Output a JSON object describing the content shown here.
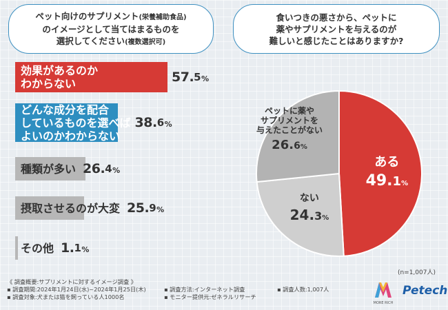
{
  "left_question": {
    "line1": "ペット向けのサプリメント",
    "line1_small": "(栄養補助食品)",
    "line2": "のイメージとして当てはまるものを",
    "line3": "選択してください",
    "line3_small": "(複数選択可)"
  },
  "right_question": {
    "line1": "食いつきの悪さから、ペットに",
    "line2": "薬やサプリメントを与えるのが",
    "line3": "難しいと感じたことはありますか?"
  },
  "sample_note": "(n=1,007人)",
  "footer": {
    "title": "《 調査概要:サプリメントに対するイメージ調査 》",
    "period": "▪ 調査期間:2024年1月24日(水)~2024年1月25日(木)",
    "target": "▪ 調査対象:犬または猫を飼っている人1000名",
    "method": "▪ 調査方法:インターネット調査",
    "provider": "▪ モニター提供元:ゼネラルリサーチ",
    "count": "▪ 調査人数:1,007人"
  },
  "logos": {
    "more_rich": "MORE RICH",
    "petech": "Petech"
  },
  "colors": {
    "red": "#d63a35",
    "blue": "#2e8ec0",
    "gray": "#b7b7b7",
    "border": "#3c8fc0"
  },
  "chart_data": [
    {
      "type": "bar",
      "orientation": "horizontal",
      "unit": "%",
      "categories": [
        "効果があるのかわからない",
        "どんな成分を配合しているものを選べばよいのかわからない",
        "種類が多い",
        "摂取させるのが大変",
        "その他"
      ],
      "labels": [
        {
          "lines": [
            "効果があるのか",
            "わからない"
          ],
          "value_int": "57.",
          "value_dec": "5",
          "pct": "%"
        },
        {
          "lines": [
            "どんな成分を配合",
            "しているものを選べば",
            "よいのかわからない"
          ],
          "value_int": "38.",
          "value_dec": "6",
          "pct": "%"
        },
        {
          "lines": [
            "種類が多い"
          ],
          "value_int": "26.",
          "value_dec": "4",
          "pct": "%"
        },
        {
          "lines": [
            "摂取させるのが大変"
          ],
          "value_int": "25.",
          "value_dec": "9",
          "pct": "%"
        },
        {
          "lines": [
            "その他"
          ],
          "value_int": "1.",
          "value_dec": "1",
          "pct": "%"
        }
      ],
      "values": [
        57.5,
        38.6,
        26.4,
        25.9,
        1.1
      ],
      "bar_colors": [
        "#d63a35",
        "#2e8ec0",
        "#b7b7b7",
        "#b7b7b7",
        "#b7b7b7"
      ],
      "xlim": [
        0,
        100
      ]
    },
    {
      "type": "pie",
      "slices": [
        {
          "label": "ある",
          "value": 49.1,
          "value_int": "49.",
          "value_dec": "1",
          "pct": "%",
          "color": "#d63a35"
        },
        {
          "label": "ない",
          "value": 24.3,
          "value_int": "24.",
          "value_dec": "3",
          "pct": "%",
          "color": "#cfcfcf"
        },
        {
          "label_lines": [
            "ペットに薬や",
            "サプリメントを",
            "与えたことがない"
          ],
          "label": "ペットに薬やサプリメントを与えたことがない",
          "value": 26.6,
          "value_int": "26.",
          "value_dec": "6",
          "pct": "%",
          "color": "#b3b3b3"
        }
      ]
    }
  ]
}
